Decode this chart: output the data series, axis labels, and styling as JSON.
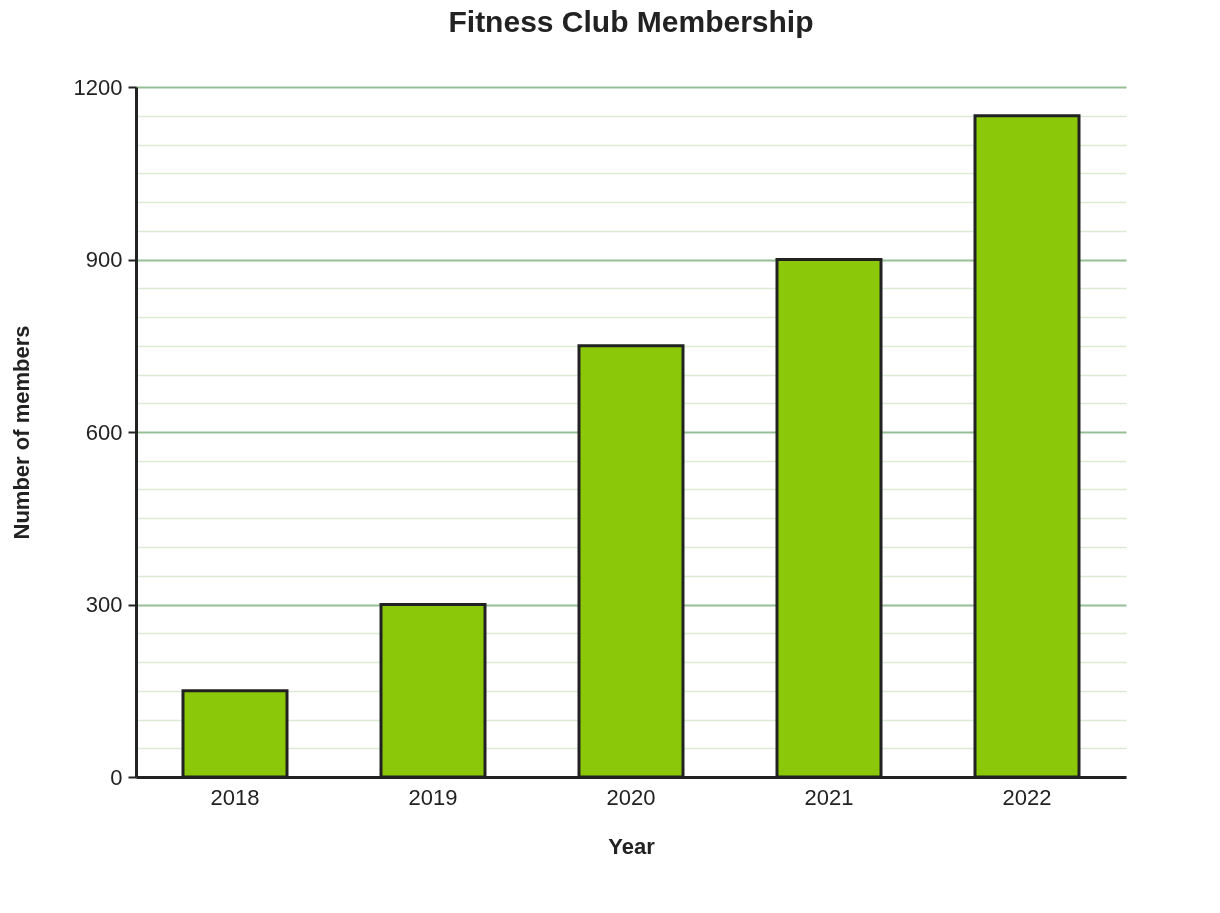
{
  "chart_data": {
    "type": "bar",
    "title": "Fitness Club Membership",
    "xlabel": "Year",
    "ylabel": "Number of members",
    "categories": [
      "2018",
      "2019",
      "2020",
      "2021",
      "2022"
    ],
    "values": [
      150,
      300,
      750,
      900,
      1150
    ],
    "color": "#8cc80a",
    "ylim": [
      0,
      1200
    ],
    "yticks": [
      0,
      300,
      600,
      900,
      1200
    ],
    "grid": true
  }
}
